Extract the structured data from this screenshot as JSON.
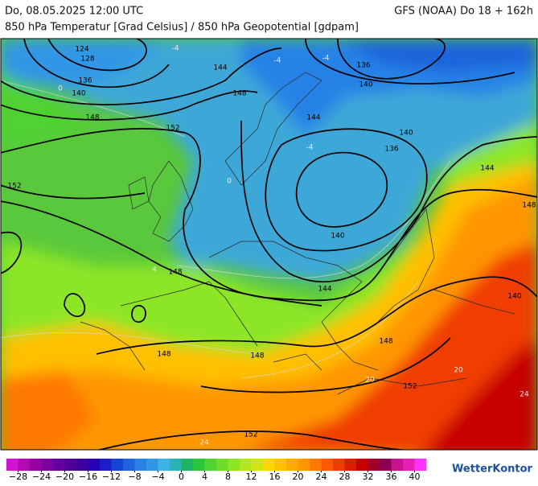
{
  "header": {
    "date": "Do, 08.05.2025 12:00 UTC",
    "model": "GFS (NOAA) Do 18 + 162h",
    "subtitle": "850 hPa Temperatur [Grad Celsius] / 850 hPa Geopotential [gdpam]"
  },
  "map": {
    "geopotential_labels": [
      "124",
      "128",
      "136",
      "140",
      "144",
      "148",
      "152",
      "148",
      "152",
      "140",
      "144",
      "136",
      "140",
      "140",
      "144",
      "148",
      "148",
      "144",
      "148",
      "148",
      "152",
      "152",
      "148",
      "136",
      "140"
    ],
    "temperature_labels": [
      "-4",
      "-4",
      "-4",
      "0",
      "4",
      "0",
      "-4",
      "20",
      "24",
      "24",
      "20"
    ]
  },
  "colorbar": {
    "lim": [
      -30,
      42
    ],
    "colors": [
      "#d214d2",
      "#b40ab4",
      "#9600a0",
      "#7d00a0",
      "#6400a0",
      "#50009a",
      "#3c00a0",
      "#2800b4",
      "#1e1ec8",
      "#1446d2",
      "#1e64dc",
      "#2882e6",
      "#3296e6",
      "#3cb4e6",
      "#28b4b4",
      "#1eb464",
      "#28c83c",
      "#50d232",
      "#6edc28",
      "#8ce628",
      "#b4e61e",
      "#d2e614",
      "#ffd700",
      "#ffc000",
      "#ffaa00",
      "#ff9600",
      "#ff7800",
      "#ff5a00",
      "#f03c00",
      "#dc1e00",
      "#c80000",
      "#a00028",
      "#8c0050",
      "#c8148c",
      "#e61eb4",
      "#ff32ff"
    ],
    "ticks": [
      {
        "value": -28,
        "label": "−28"
      },
      {
        "value": -24,
        "label": "−24"
      },
      {
        "value": -20,
        "label": "−20"
      },
      {
        "value": -16,
        "label": "−16"
      },
      {
        "value": -12,
        "label": "−12"
      },
      {
        "value": -8,
        "label": "−8"
      },
      {
        "value": -4,
        "label": "−4"
      },
      0,
      4,
      8,
      12,
      16,
      20,
      24,
      28,
      32,
      36,
      40
    ]
  },
  "brand": "WetterKontor"
}
